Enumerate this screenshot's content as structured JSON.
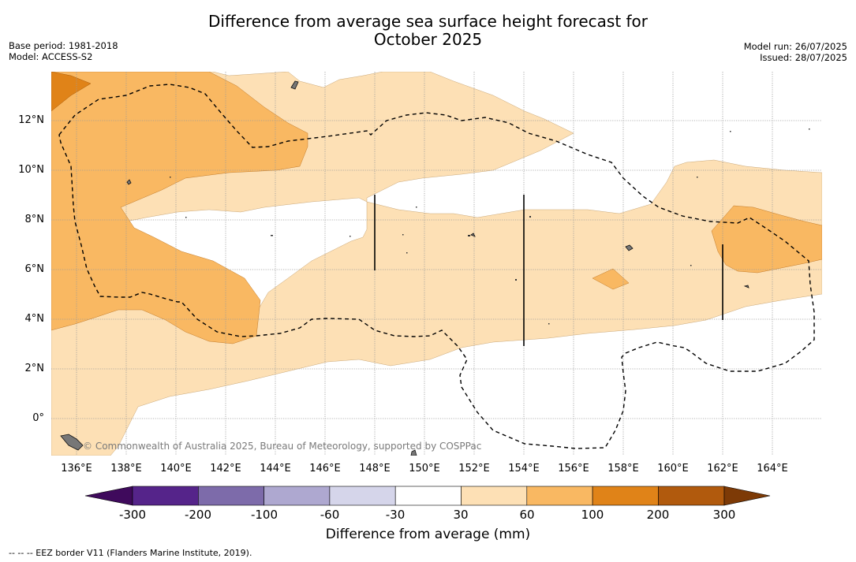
{
  "title_line1": "Difference from average sea surface height forecast for",
  "title_line2": "October 2025",
  "base_period": "Base period: 1981-2018",
  "model": "Model: ACCESS-S2",
  "model_run": "Model run: 26/07/2025",
  "issued": "Issued: 28/07/2025",
  "lat_labels": [
    "12°N",
    "10°N",
    "8°N",
    "6°N",
    "4°N",
    "2°N",
    "0°"
  ],
  "lon_labels": [
    "136°E",
    "138°E",
    "140°E",
    "142°E",
    "144°E",
    "146°E",
    "148°E",
    "150°E",
    "152°E",
    "154°E",
    "156°E",
    "158°E",
    "160°E",
    "162°E",
    "164°E"
  ],
  "credit": "© Commonwealth of Australia 2025, Bureau of Meteorology, supported by COSPPac",
  "colorbar": {
    "title": "Difference from average (mm)",
    "tick_labels": [
      "-300",
      "-200",
      "-100",
      "-60",
      "-30",
      "30",
      "60",
      "100",
      "200",
      "300"
    ],
    "colors": [
      "#3f0a5c",
      "#55248a",
      "#7d6baa",
      "#aea8d0",
      "#d5d5ea",
      "#ffffff",
      "#fde0b5",
      "#f9b862",
      "#e08318",
      "#b15a0d",
      "#7d3a06"
    ]
  },
  "legend_note": "-- -- -- EEZ border V11 (Flanders Marine Institute, 2019)."
}
